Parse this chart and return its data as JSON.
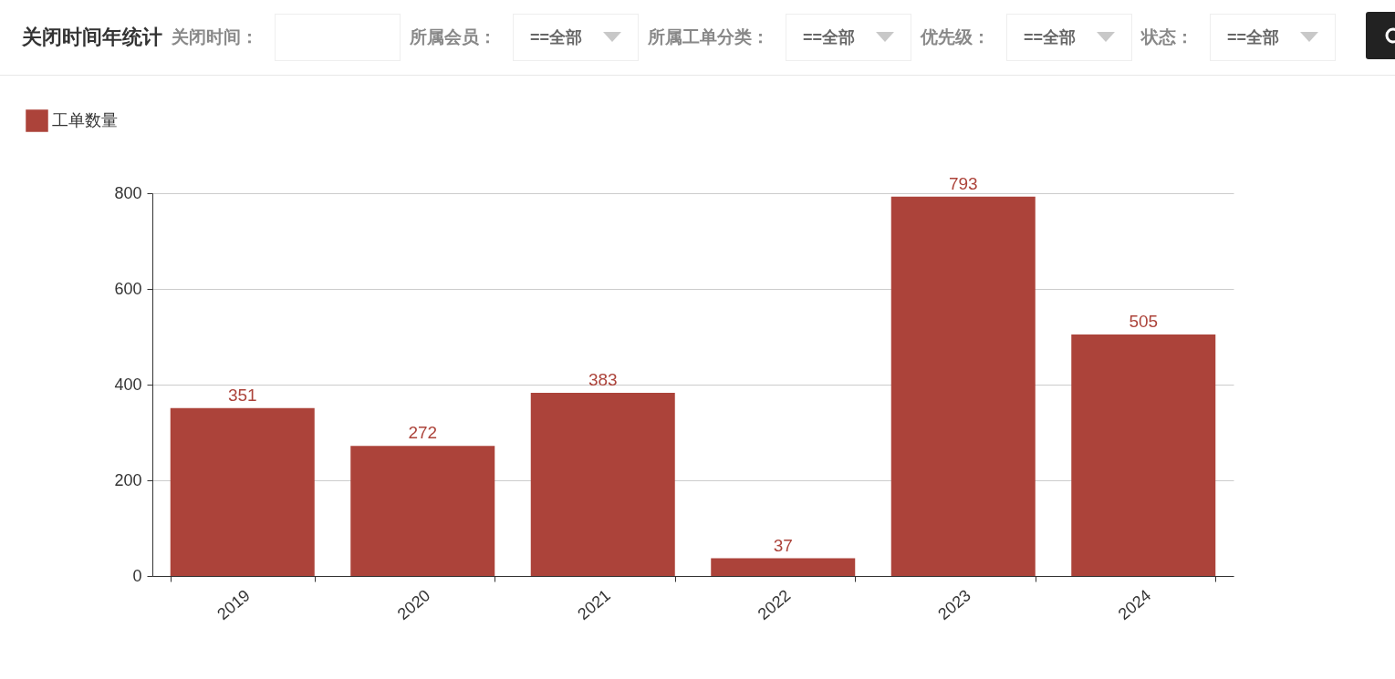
{
  "chart_data": {
    "type": "bar",
    "title": "关闭时间年统计",
    "annotations": [
      "关闭时间：",
      "所属会员：",
      "==全部",
      "所属工单分类：",
      "==全部",
      "优先级：",
      "==全部",
      "状态：",
      "==全部"
    ],
    "categories": [
      "2019",
      "2020",
      "2021",
      "2022",
      "2023",
      "2024"
    ],
    "series": [
      {
        "name": "工单数量",
        "color": "#ac433a",
        "values": [
          351,
          272,
          383,
          37,
          793,
          505
        ]
      }
    ],
    "ylim": [
      0,
      800
    ],
    "yticks": [
      0,
      200,
      400,
      600,
      800
    ],
    "grid": "y",
    "legend": "top left",
    "data_labels": true
  }
}
